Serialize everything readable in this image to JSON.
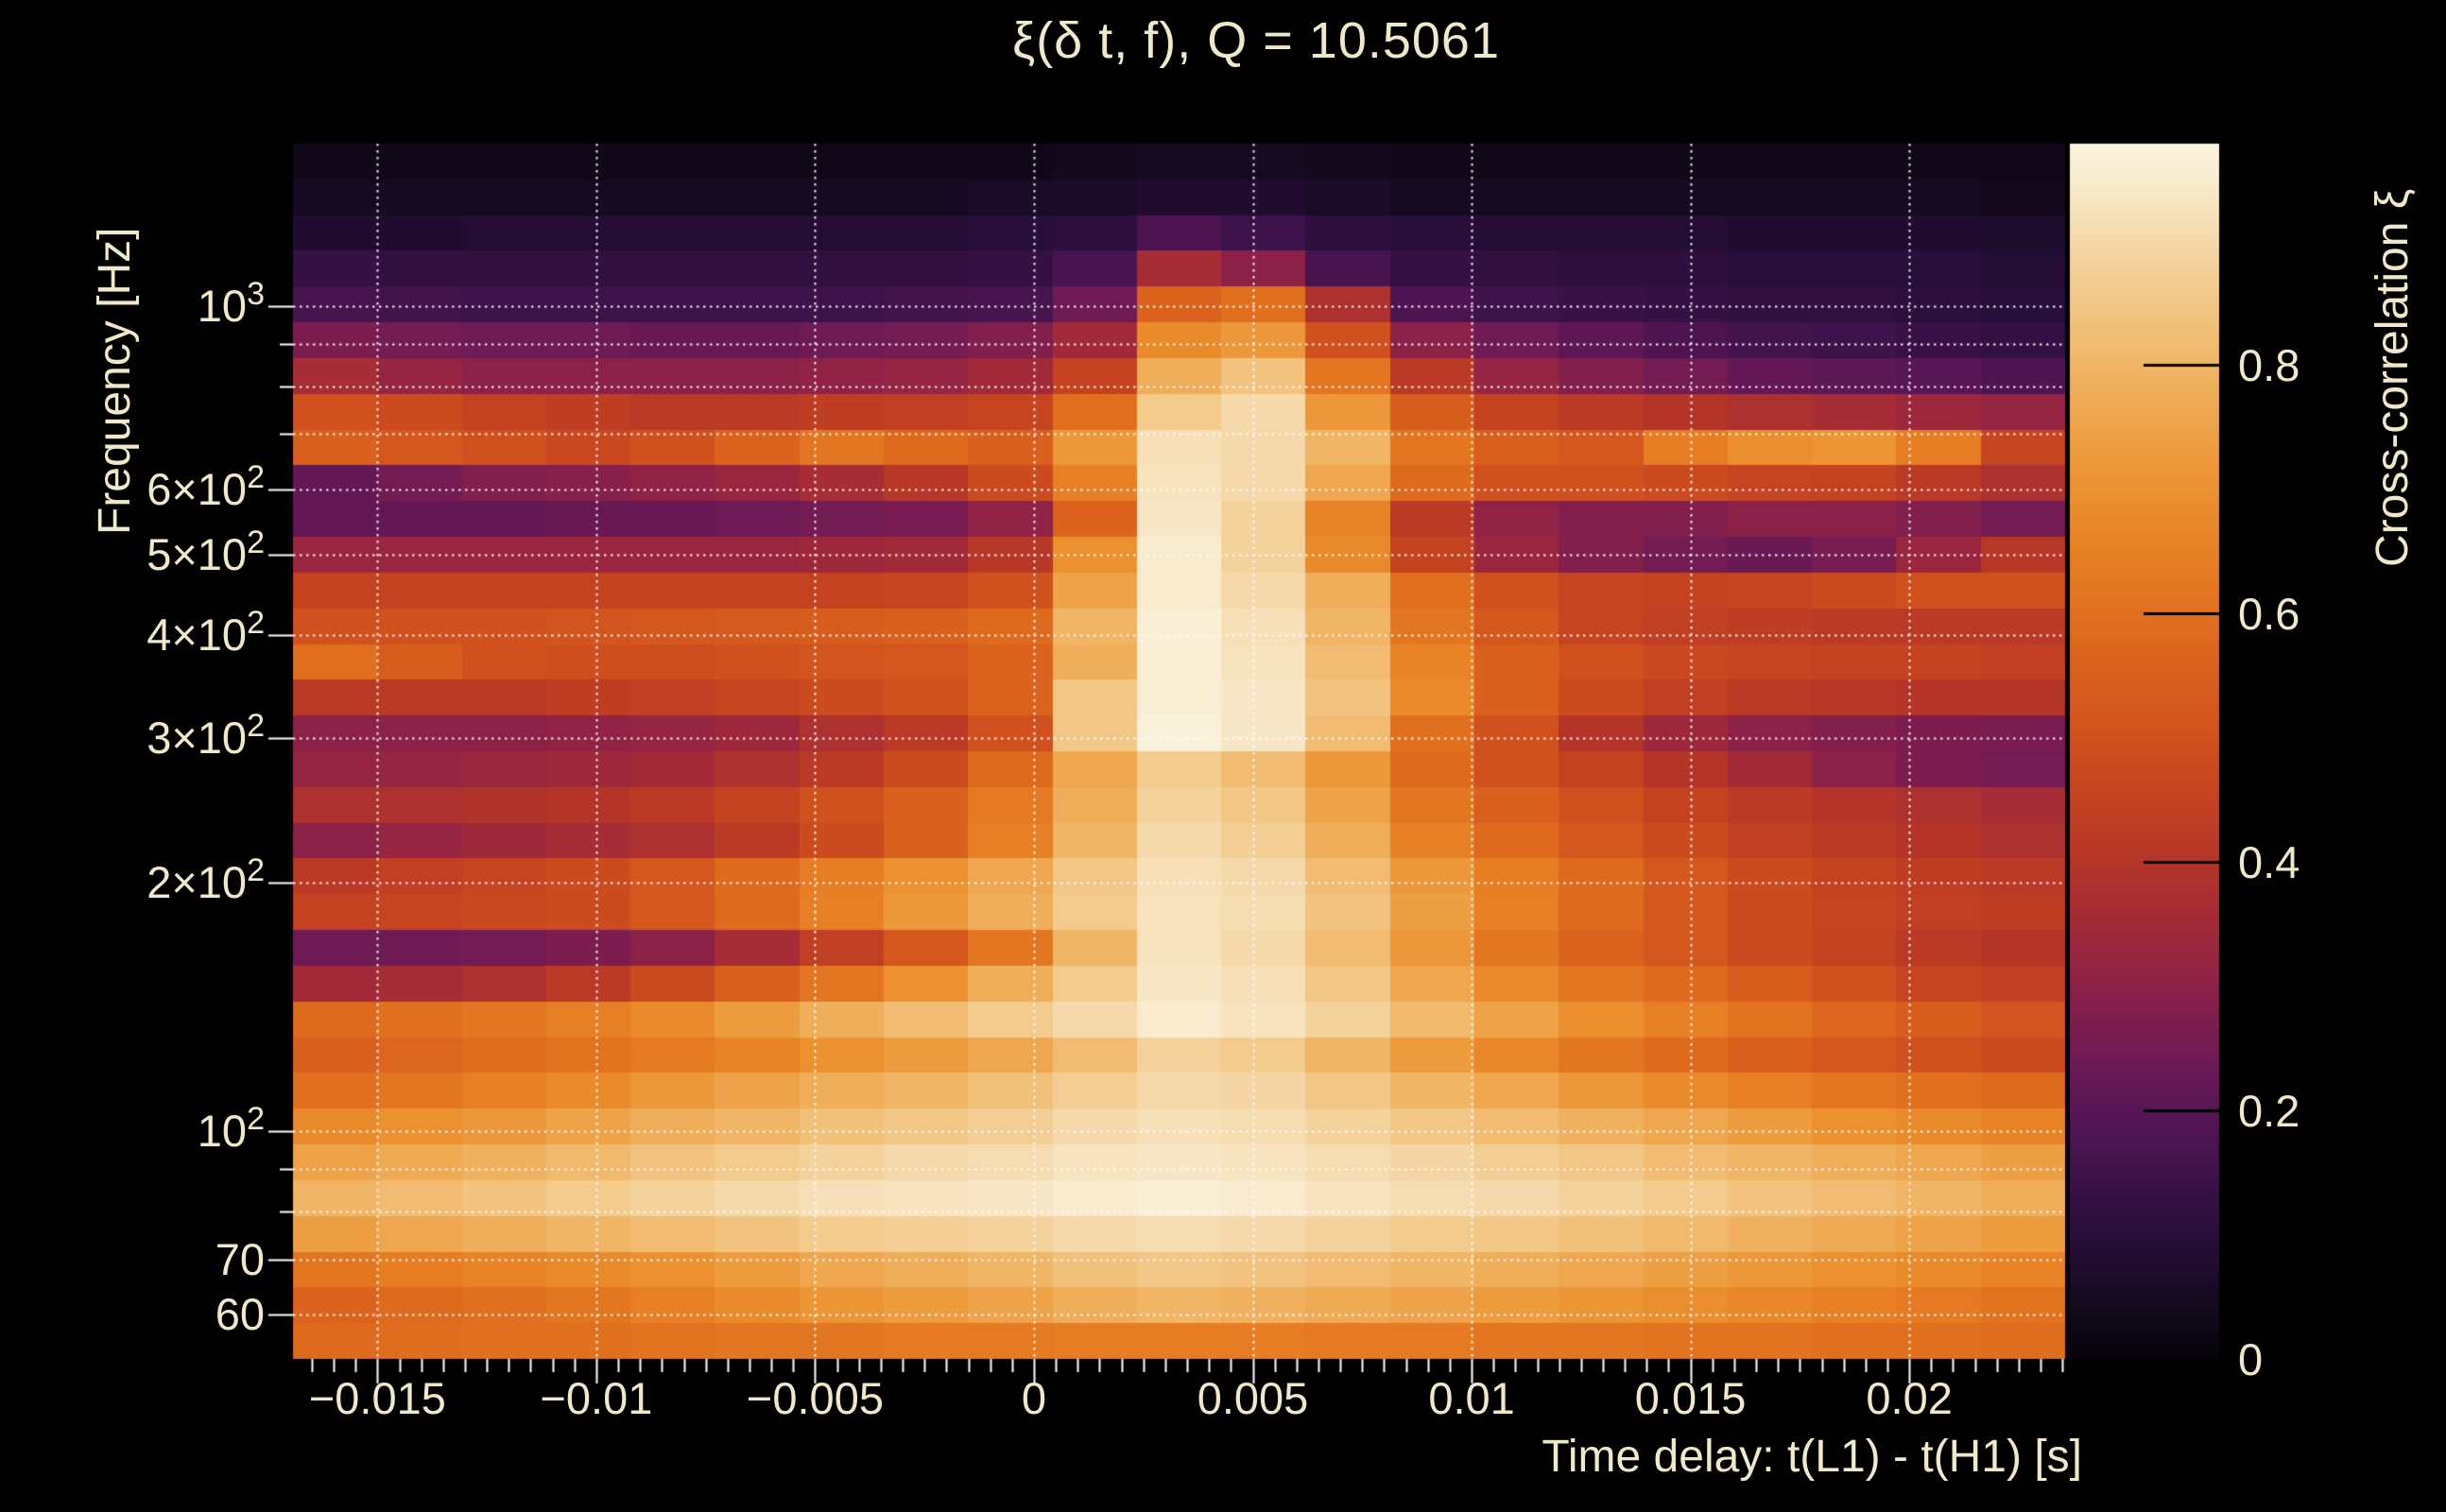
{
  "chart_data": {
    "type": "heatmap",
    "title": "ξ(δ t, f), Q = 10.5061",
    "xlabel": "Time delay: t(L1) - t(H1) [s]",
    "ylabel": "Frequency [Hz]",
    "colorbar_label": "Cross-correlation ξ",
    "x_range": [
      -0.01693,
      0.02356
    ],
    "y_range": [
      53,
      1575
    ],
    "y_scale": "log",
    "z_range": [
      0,
      0.978
    ],
    "grid_on": true,
    "x_ticks": [
      {
        "value": -0.015,
        "label": "−0.015"
      },
      {
        "value": -0.01,
        "label": "−0.01"
      },
      {
        "value": -0.005,
        "label": "−0.005"
      },
      {
        "value": 0,
        "label": "0"
      },
      {
        "value": 0.005,
        "label": "0.005"
      },
      {
        "value": 0.01,
        "label": "0.01"
      },
      {
        "value": 0.015,
        "label": "0.015"
      },
      {
        "value": 0.02,
        "label": "0.02"
      }
    ],
    "x_minor_step": 0.0005,
    "y_ticks": [
      {
        "f": 1000,
        "base": "10",
        "exp": "3"
      },
      {
        "f": 600,
        "base": "6×10",
        "exp": "2"
      },
      {
        "f": 500,
        "base": "5×10",
        "exp": "2"
      },
      {
        "f": 400,
        "base": "4×10",
        "exp": "2"
      },
      {
        "f": 300,
        "base": "3×10",
        "exp": "2"
      },
      {
        "f": 200,
        "base": "2×10",
        "exp": "2"
      },
      {
        "f": 100,
        "base": "10",
        "exp": "2"
      },
      {
        "f": 70,
        "base": "70",
        "exp": ""
      },
      {
        "f": 60,
        "base": "60",
        "exp": ""
      }
    ],
    "y_minor_ticks": [
      80,
      90,
      700,
      800,
      900
    ],
    "y_gridlines": [
      60,
      70,
      80,
      90,
      100,
      200,
      300,
      400,
      500,
      600,
      700,
      800,
      900,
      1000
    ],
    "colorbar_ticks": [
      {
        "v": 0,
        "label": "0"
      },
      {
        "v": 0.2,
        "label": "0.2"
      },
      {
        "v": 0.4,
        "label": "0.4"
      },
      {
        "v": 0.6,
        "label": "0.6"
      },
      {
        "v": 0.8,
        "label": "0.8"
      }
    ],
    "colors": {
      "background": "#000000",
      "text": "#f0e8ca",
      "gridline": "#ffffff",
      "axis_tick": "#ffffff",
      "colorbar_tick": "#000000"
    },
    "colormap_stops": [
      [
        0.0,
        6,
        4,
        10
      ],
      [
        0.05,
        22,
        10,
        34
      ],
      [
        0.1,
        40,
        14,
        58
      ],
      [
        0.15,
        62,
        18,
        74
      ],
      [
        0.2,
        88,
        22,
        86
      ],
      [
        0.25,
        115,
        27,
        83
      ],
      [
        0.3,
        140,
        33,
        72
      ],
      [
        0.35,
        162,
        42,
        56
      ],
      [
        0.4,
        180,
        53,
        40
      ],
      [
        0.45,
        196,
        66,
        32
      ],
      [
        0.5,
        208,
        81,
        30
      ],
      [
        0.55,
        217,
        96,
        29
      ],
      [
        0.6,
        225,
        112,
        30
      ],
      [
        0.65,
        231,
        128,
        36
      ],
      [
        0.7,
        235,
        145,
        48
      ],
      [
        0.75,
        238,
        163,
        72
      ],
      [
        0.8,
        240,
        181,
        101
      ],
      [
        0.85,
        242,
        199,
        134
      ],
      [
        0.9,
        245,
        217,
        170
      ],
      [
        0.95,
        249,
        235,
        205
      ],
      [
        1.0,
        252,
        250,
        238
      ]
    ],
    "grid": {
      "cols": 21,
      "rows": 34,
      "value_scale": 0.01,
      "values": [
        [
          3,
          3,
          3,
          3,
          3,
          3,
          3,
          3,
          3,
          4,
          5,
          5,
          4,
          3,
          3,
          3,
          3,
          3,
          3,
          3,
          3
        ],
        [
          5,
          5,
          5,
          5,
          5,
          5,
          5,
          5,
          6,
          6,
          8,
          8,
          6,
          5,
          5,
          5,
          5,
          5,
          5,
          5,
          4
        ],
        [
          8,
          8,
          9,
          9,
          9,
          9,
          9,
          9,
          10,
          11,
          18,
          15,
          11,
          10,
          9,
          9,
          9,
          8,
          8,
          8,
          7
        ],
        [
          13,
          12,
          12,
          12,
          12,
          12,
          12,
          12,
          13,
          17,
          36,
          30,
          17,
          13,
          12,
          11,
          11,
          10,
          10,
          10,
          9
        ],
        [
          17,
          16,
          15,
          15,
          15,
          15,
          15,
          16,
          17,
          24,
          56,
          60,
          38,
          18,
          15,
          14,
          13,
          12,
          12,
          11,
          10
        ],
        [
          27,
          25,
          24,
          24,
          23,
          23,
          24,
          25,
          28,
          35,
          68,
          72,
          50,
          30,
          24,
          21,
          18,
          16,
          15,
          14,
          13
        ],
        [
          36,
          32,
          30,
          30,
          30,
          30,
          31,
          32,
          35,
          45,
          78,
          84,
          62,
          42,
          32,
          28,
          25,
          22,
          21,
          20,
          18
        ],
        [
          50,
          48,
          45,
          43,
          42,
          42,
          43,
          44,
          46,
          60,
          86,
          90,
          72,
          54,
          45,
          42,
          40,
          38,
          36,
          34,
          32
        ],
        [
          55,
          52,
          50,
          47,
          50,
          56,
          62,
          58,
          55,
          72,
          92,
          90,
          80,
          62,
          55,
          52,
          64,
          69,
          71,
          64,
          46
        ],
        [
          22,
          25,
          28,
          29,
          31,
          33,
          36,
          41,
          48,
          65,
          93,
          90,
          76,
          58,
          50,
          50,
          48,
          46,
          45,
          42,
          38
        ],
        [
          22,
          22,
          22,
          23,
          23,
          24,
          25,
          26,
          31,
          56,
          94,
          88,
          66,
          42,
          31,
          28,
          28,
          30,
          30,
          28,
          25
        ],
        [
          33,
          33,
          33,
          33,
          33,
          33,
          34,
          35,
          41,
          70,
          95,
          88,
          68,
          45,
          33,
          28,
          25,
          23,
          26,
          33,
          41
        ],
        [
          45,
          45,
          45,
          45,
          45,
          45,
          45,
          46,
          50,
          75,
          95,
          90,
          78,
          60,
          50,
          46,
          45,
          46,
          48,
          50,
          50
        ],
        [
          50,
          50,
          50,
          51,
          52,
          53,
          54,
          55,
          58,
          80,
          96,
          92,
          80,
          62,
          52,
          46,
          44,
          43,
          42,
          42,
          42
        ],
        [
          60,
          54,
          50,
          49,
          49,
          50,
          51,
          52,
          56,
          78,
          96,
          93,
          82,
          66,
          55,
          50,
          47,
          46,
          45,
          45,
          44
        ],
        [
          42,
          42,
          42,
          43,
          44,
          46,
          48,
          50,
          56,
          85,
          96,
          94,
          84,
          68,
          55,
          48,
          44,
          42,
          41,
          40,
          40
        ],
        [
          30,
          30,
          30,
          31,
          32,
          34,
          38,
          42,
          50,
          85,
          97,
          94,
          82,
          60,
          50,
          40,
          34,
          30,
          28,
          27,
          26
        ],
        [
          32,
          32,
          33,
          34,
          35,
          38,
          42,
          48,
          58,
          76,
          86,
          82,
          72,
          58,
          50,
          45,
          40,
          35,
          30,
          27,
          25
        ],
        [
          38,
          38,
          39,
          40,
          42,
          45,
          50,
          55,
          63,
          78,
          88,
          85,
          75,
          62,
          55,
          50,
          45,
          42,
          40,
          38,
          36
        ],
        [
          30,
          32,
          34,
          36,
          38,
          42,
          48,
          55,
          65,
          80,
          90,
          87,
          78,
          65,
          58,
          52,
          48,
          44,
          42,
          40,
          38
        ],
        [
          42,
          44,
          46,
          48,
          52,
          58,
          64,
          70,
          76,
          85,
          92,
          90,
          82,
          72,
          64,
          58,
          52,
          48,
          45,
          43,
          42
        ],
        [
          45,
          46,
          47,
          48,
          52,
          58,
          65,
          72,
          78,
          86,
          93,
          91,
          84,
          74,
          65,
          58,
          52,
          48,
          46,
          44,
          43
        ],
        [
          24,
          24,
          25,
          27,
          30,
          36,
          44,
          52,
          62,
          80,
          93,
          90,
          82,
          72,
          62,
          56,
          52,
          48,
          45,
          42,
          40
        ],
        [
          35,
          36,
          38,
          42,
          48,
          55,
          62,
          70,
          78,
          86,
          94,
          92,
          85,
          76,
          68,
          62,
          58,
          54,
          50,
          46,
          44
        ],
        [
          58,
          60,
          62,
          65,
          68,
          73,
          78,
          82,
          86,
          90,
          95,
          93,
          88,
          81,
          75,
          69,
          65,
          61,
          57,
          54,
          51
        ],
        [
          55,
          57,
          59,
          61,
          63,
          66,
          70,
          73,
          76,
          82,
          88,
          86,
          80,
          73,
          67,
          62,
          58,
          55,
          52,
          50,
          48
        ],
        [
          60,
          62,
          65,
          68,
          72,
          75,
          78,
          80,
          83,
          87,
          90,
          89,
          85,
          80,
          76,
          72,
          68,
          65,
          62,
          60,
          58
        ],
        [
          68,
          70,
          72,
          75,
          78,
          80,
          83,
          85,
          87,
          90,
          92,
          91,
          88,
          85,
          82,
          79,
          76,
          73,
          70,
          68,
          66
        ],
        [
          75,
          77,
          79,
          81,
          84,
          86,
          88,
          90,
          91,
          93,
          94,
          93,
          91,
          89,
          87,
          85,
          82,
          80,
          78,
          76,
          74
        ],
        [
          80,
          82,
          84,
          86,
          88,
          90,
          92,
          93,
          94,
          95,
          96,
          95,
          93,
          91,
          90,
          88,
          86,
          84,
          82,
          80,
          78
        ],
        [
          74,
          76,
          78,
          80,
          82,
          84,
          86,
          87,
          88,
          90,
          91,
          90,
          88,
          86,
          85,
          83,
          81,
          79,
          77,
          75,
          73
        ],
        [
          62,
          64,
          66,
          68,
          70,
          73,
          76,
          78,
          80,
          83,
          85,
          84,
          82,
          80,
          78,
          76,
          74,
          72,
          70,
          68,
          66
        ],
        [
          56,
          58,
          60,
          62,
          65,
          68,
          71,
          73,
          75,
          78,
          80,
          79,
          77,
          75,
          73,
          71,
          69,
          67,
          65,
          63,
          61
        ],
        [
          58,
          59,
          60,
          60,
          61,
          62,
          62,
          63,
          63,
          64,
          64,
          64,
          63,
          63,
          62,
          62,
          61,
          61,
          60,
          60,
          59
        ]
      ]
    }
  }
}
